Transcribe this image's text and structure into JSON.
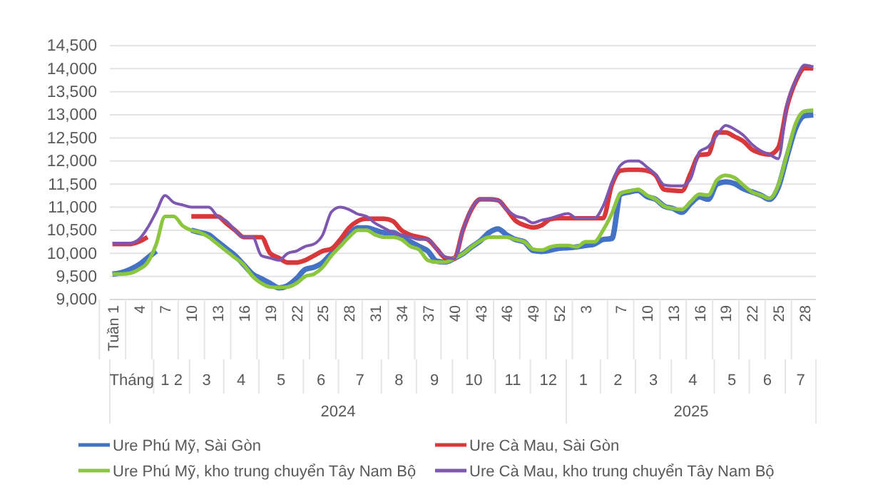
{
  "chart_data": {
    "type": "line",
    "categories": [
      "Tuần 1",
      null,
      null,
      "4",
      null,
      null,
      "7",
      null,
      null,
      "10",
      null,
      null,
      "13",
      null,
      null,
      "16",
      null,
      null,
      "19",
      null,
      null,
      "22",
      null,
      null,
      "25",
      null,
      null,
      "28",
      null,
      null,
      "31",
      null,
      null,
      "34",
      null,
      null,
      "37",
      null,
      null,
      "40",
      null,
      null,
      "43",
      null,
      null,
      "46",
      null,
      null,
      "49",
      null,
      null,
      "52",
      null,
      null,
      "3",
      null,
      null,
      null,
      "7",
      null,
      null,
      "10",
      null,
      null,
      "13",
      null,
      null,
      "16",
      null,
      null,
      "19",
      null,
      null,
      "22",
      null,
      null,
      "25",
      null,
      null,
      "28",
      null
    ],
    "series": [
      {
        "name": "Ure Phú Mỹ, Sài Gòn",
        "color": "#4472c4",
        "values": [
          9550,
          9580,
          9650,
          9750,
          9900,
          10050,
          null,
          null,
          null,
          10500,
          10450,
          10400,
          10250,
          10100,
          9950,
          9750,
          9550,
          9450,
          9350,
          9250,
          9300,
          9450,
          9650,
          9700,
          9800,
          10000,
          10200,
          10400,
          10550,
          10550,
          10500,
          10450,
          10450,
          10350,
          10250,
          10150,
          10050,
          9830,
          9810,
          9890,
          9990,
          10140,
          10270,
          10450,
          10530,
          10400,
          10300,
          10250,
          10060,
          10040,
          10070,
          10110,
          10120,
          10140,
          10170,
          10200,
          10300,
          10320,
          11280,
          11330,
          11360,
          11230,
          11170,
          11020,
          10970,
          10890,
          11080,
          11220,
          11170,
          11500,
          11550,
          11510,
          11400,
          11330,
          11260,
          11170,
          11430,
          12100,
          12720,
          12980,
          13000
        ]
      },
      {
        "name": "Ure Cà Mau, Sài Gòn",
        "color": "#d9383a",
        "values": [
          10200,
          10200,
          10200,
          10250,
          10350,
          null,
          null,
          null,
          null,
          10800,
          10800,
          10800,
          10800,
          10650,
          10500,
          10350,
          10350,
          10350,
          10000,
          9900,
          9800,
          9800,
          9850,
          9950,
          10050,
          10100,
          10300,
          10550,
          10700,
          10750,
          10750,
          10750,
          10700,
          10500,
          10400,
          10350,
          10300,
          10100,
          9900,
          9880,
          10500,
          10960,
          11170,
          11170,
          11150,
          10950,
          10710,
          10610,
          10560,
          10610,
          10740,
          10760,
          10760,
          10760,
          10760,
          10760,
          10760,
          11480,
          11790,
          11810,
          11810,
          11790,
          11690,
          11380,
          11360,
          11350,
          11740,
          12130,
          12150,
          12620,
          12620,
          12530,
          12430,
          12250,
          12170,
          12140,
          12290,
          13180,
          13730,
          14010,
          14010
        ]
      },
      {
        "name": "Ure Phú Mỹ, kho trung chuyển Tây Nam Bộ",
        "color": "#8cc63f",
        "values": [
          9550,
          9550,
          9570,
          9650,
          9800,
          10200,
          10800,
          10800,
          10600,
          10500,
          10450,
          10350,
          10200,
          10050,
          9900,
          9750,
          9500,
          9350,
          9270,
          9260,
          9270,
          9350,
          9500,
          9550,
          9700,
          9950,
          10150,
          10350,
          10500,
          10500,
          10400,
          10350,
          10350,
          10300,
          10150,
          10080,
          9850,
          9810,
          9810,
          9890,
          9990,
          10140,
          10270,
          10350,
          10350,
          10350,
          10300,
          10250,
          10090,
          10070,
          10140,
          10170,
          10170,
          10140,
          10250,
          10250,
          10500,
          10860,
          11300,
          11350,
          11380,
          11260,
          11170,
          11020,
          10970,
          10950,
          11120,
          11280,
          11260,
          11590,
          11690,
          11640,
          11480,
          11330,
          11260,
          11190,
          11480,
          12150,
          12820,
          13080,
          13100
        ]
      },
      {
        "name": "Ure Cà Mau, kho trung chuyển Tây Nam Bộ",
        "color": "#7e57b0",
        "values": [
          10220,
          10220,
          10220,
          10300,
          10550,
          10900,
          11250,
          11100,
          11050,
          11000,
          11000,
          11000,
          10800,
          10700,
          10500,
          10350,
          10350,
          9950,
          9900,
          9850,
          10000,
          10050,
          10150,
          10200,
          10400,
          10900,
          11000,
          10950,
          10850,
          10800,
          10650,
          10550,
          10450,
          10400,
          10350,
          10300,
          10300,
          10100,
          9920,
          9880,
          10500,
          10970,
          11170,
          11170,
          11150,
          10950,
          10810,
          10760,
          10660,
          10720,
          10760,
          10820,
          10860,
          10760,
          10760,
          10760,
          11020,
          11530,
          11910,
          12000,
          12000,
          11870,
          11710,
          11480,
          11460,
          11460,
          11620,
          12200,
          12310,
          12560,
          12770,
          12690,
          12560,
          12360,
          12220,
          12140,
          12050,
          13230,
          13750,
          14080,
          14040
        ]
      }
    ],
    "ylim": [
      9000,
      14500
    ],
    "yticks": [
      {
        "value": 9000,
        "label": "9,000"
      },
      {
        "value": 9500,
        "label": "9,500"
      },
      {
        "value": 10000,
        "label": "10,000"
      },
      {
        "value": 10500,
        "label": "10,500"
      },
      {
        "value": 11000,
        "label": "11,000"
      },
      {
        "value": 11500,
        "label": "11,500"
      },
      {
        "value": 12000,
        "label": "12,000"
      },
      {
        "value": 12500,
        "label": "12,500"
      },
      {
        "value": 13000,
        "label": "13,000"
      },
      {
        "value": 13500,
        "label": "13,500"
      },
      {
        "value": 14000,
        "label": "14,000"
      },
      {
        "value": 14500,
        "label": "14,500"
      }
    ],
    "grid": "y",
    "legend": "bottom",
    "marker": "none",
    "line_style": "solid",
    "annotations": [
      "Tháng",
      "1 2",
      "3",
      "4",
      "5",
      "6",
      "7",
      "8",
      "9",
      "10",
      "11",
      "12",
      "1",
      "2",
      "3",
      "4",
      "5",
      "6",
      "7",
      "2024",
      "2025"
    ]
  }
}
